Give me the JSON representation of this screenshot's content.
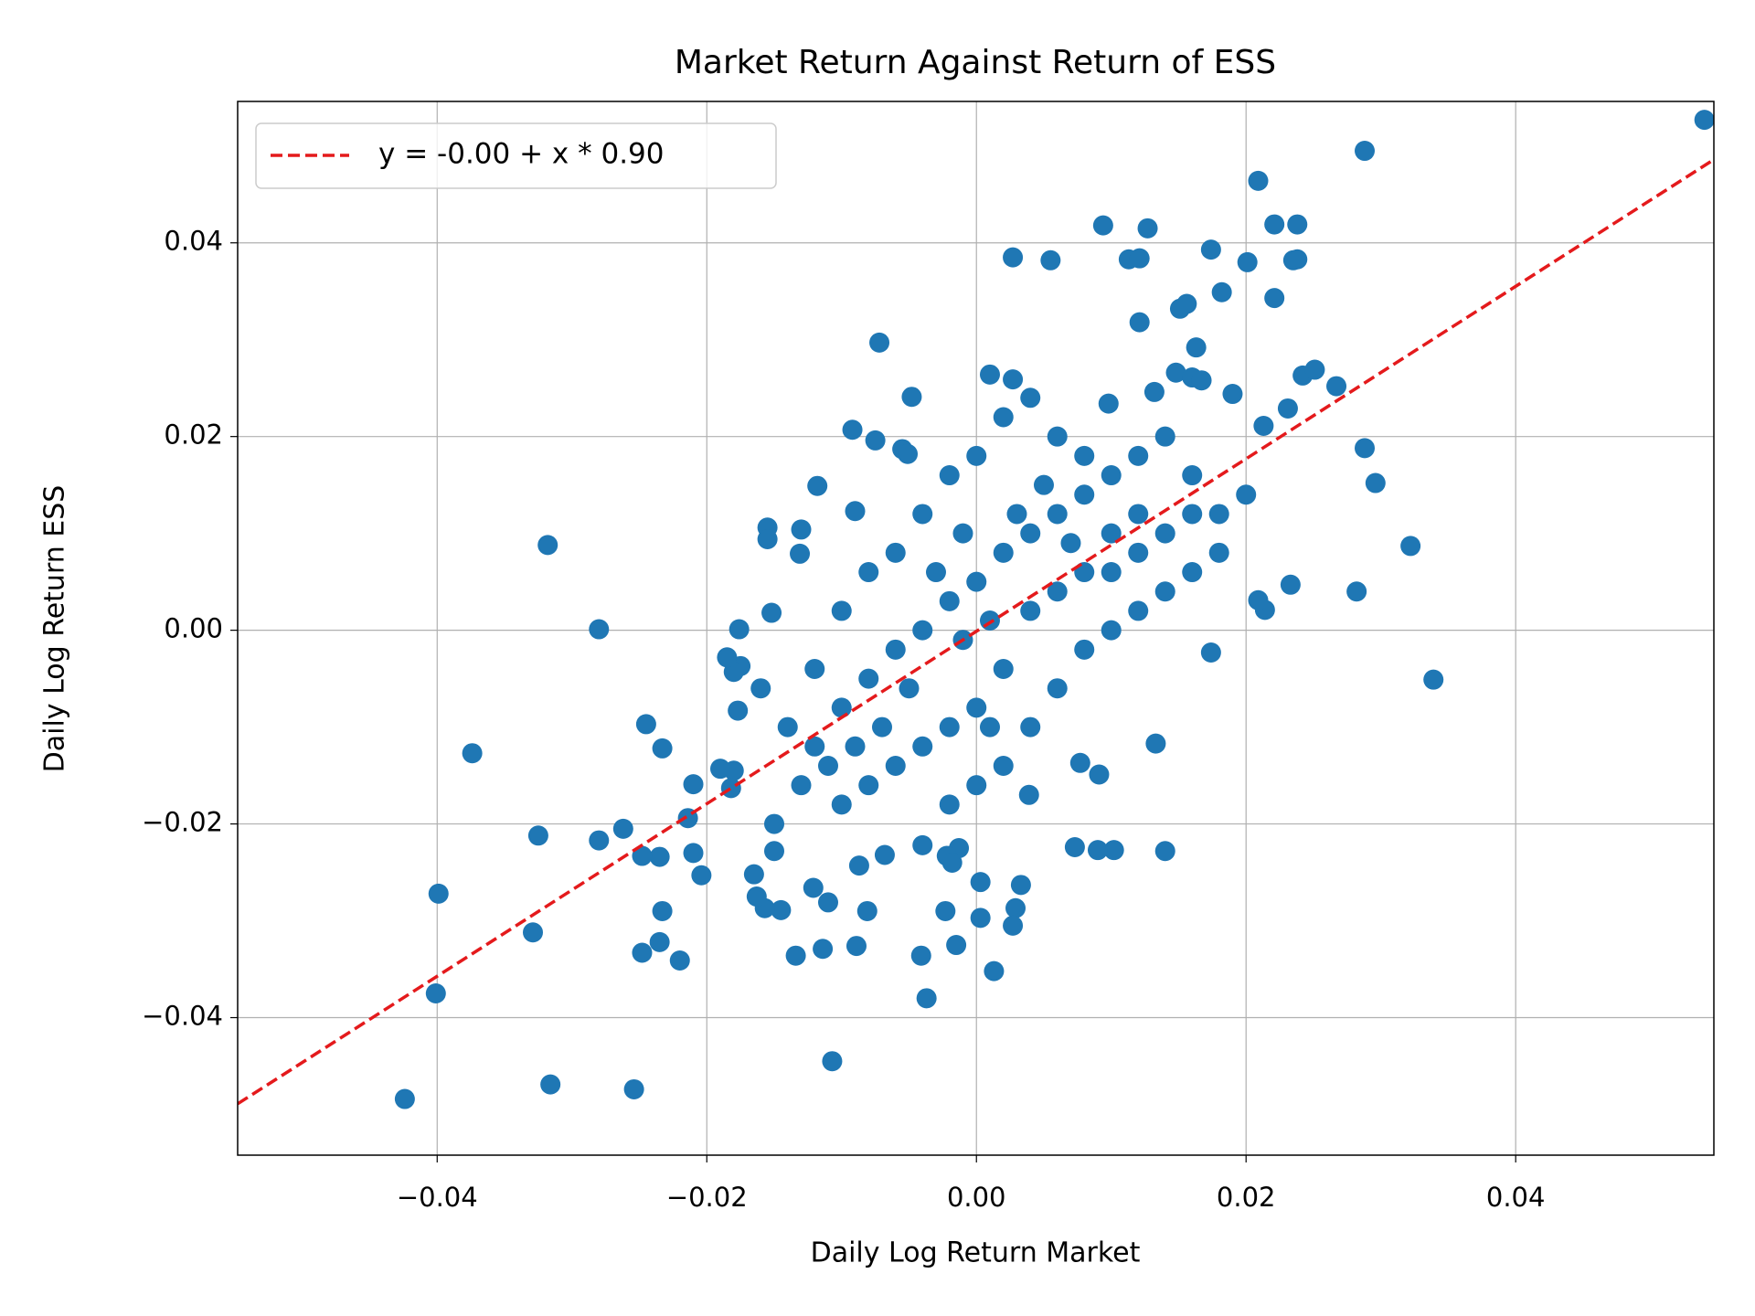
{
  "chart_data": {
    "type": "scatter",
    "title": "Market Return Against Return of ESS",
    "xlabel": "Daily Log Return Market",
    "ylabel": "Daily Log Return ESS",
    "xlim": [
      -0.0548,
      0.0547
    ],
    "ylim": [
      -0.0542,
      0.0546
    ],
    "xticks": [
      {
        "value": -0.04,
        "label": "−0.04"
      },
      {
        "value": -0.02,
        "label": "−0.02"
      },
      {
        "value": 0,
        "label": "0.00"
      },
      0.02,
      0.04
    ],
    "yticks": [
      {
        "value": -0.04,
        "label": "−0.04"
      },
      {
        "value": -0.02,
        "label": "−0.02"
      },
      {
        "value": 0,
        "label": "0.00"
      },
      0.02,
      0.04
    ],
    "grid": true,
    "legend": "upper left",
    "series": [
      {
        "name": "y = -0.00 + x * 0.90",
        "type": "line",
        "color": "#e41a1c",
        "dashed": true,
        "x": [
          -0.0548,
          0.0547
        ],
        "values": [
          -0.0489,
          0.0486
        ]
      },
      {
        "type": "scatter",
        "color": "#1f77b4",
        "x": [
          0.054,
          0.0288,
          0.0209,
          0.0094,
          0.0127,
          0.0221,
          0.0238,
          0.0027,
          0.0055,
          0.0113,
          0.0121,
          0.0174,
          0.0201,
          0.0235,
          0.0238,
          0.0182,
          0.0221,
          0.0151,
          0.0156,
          0.0121,
          -0.0072,
          0.0163,
          0.001,
          0.0027,
          0.0148,
          0.016,
          0.0167,
          0.0242,
          0.0251,
          0.0267,
          -0.0048,
          0.0098,
          0.0132,
          0.019,
          0.0231,
          -0.0092,
          0.0213,
          0.0288,
          0.0296,
          0.0322,
          0.0282,
          0.0339,
          0.0233,
          0.0214,
          0.0209,
          0.0174,
          0.0133,
          0.014,
          0.0102,
          0.009,
          0.0073,
          0.0091,
          0.0077,
          0.0039,
          0.0033,
          0.0029,
          0.0027,
          0.0013,
          0.0003,
          0.0003,
          -0.0013,
          -0.0022,
          -0.0018,
          -0.0023,
          -0.0015,
          -0.0041,
          -0.0037,
          -0.004,
          -0.0068,
          -0.0081,
          -0.0087,
          -0.0089,
          -0.011,
          -0.0114,
          -0.0107,
          -0.0121,
          -0.0134,
          -0.0145,
          -0.015,
          -0.0157,
          -0.0163,
          -0.0165,
          -0.018,
          -0.0182,
          -0.0177,
          -0.0175,
          -0.018,
          -0.0185,
          -0.0176,
          -0.0152,
          -0.0155,
          -0.0155,
          -0.013,
          -0.0131,
          -0.0118,
          -0.009,
          -0.0075,
          -0.0055,
          -0.0051,
          -0.021,
          -0.019,
          -0.0214,
          -0.021,
          -0.0204,
          -0.0233,
          -0.0245,
          -0.0235,
          -0.0248,
          -0.0262,
          -0.028,
          -0.0233,
          -0.0235,
          -0.0248,
          -0.022,
          -0.0254,
          -0.0316,
          -0.0424,
          -0.0401,
          -0.0399,
          -0.0329,
          -0.0325,
          -0.0374,
          -0.0318,
          -0.028,
          -0.01,
          -0.008,
          -0.006,
          -0.004,
          -0.002,
          0,
          0.002,
          0.004,
          0.006,
          0.008,
          0.01,
          0.012,
          0.004,
          0.002,
          0,
          -0.002,
          -0.004,
          -0.006,
          -0.008,
          -0.01,
          -0.012,
          -0.014,
          -0.012,
          -0.01,
          -0.008,
          -0.006,
          -0.004,
          -0.002,
          0,
          0.002,
          0.004,
          0.006,
          0.008,
          0.01,
          0.012,
          0.014,
          0.016,
          0.018,
          0.02,
          0.016,
          0.014,
          0.012,
          0.01,
          0.008,
          0.006,
          0.004,
          0.002,
          0,
          -0.002,
          0.006,
          0.008,
          0.001,
          -0.001,
          0.003,
          0.005,
          -0.003,
          -0.005,
          -0.007,
          -0.009,
          -0.011,
          -0.013,
          -0.015,
          -0.016,
          0.01,
          0.012,
          0.014,
          0.016,
          0.018,
          0.007,
          -0.001,
          0.001
        ],
        "values": [
          0.0527,
          0.0495,
          0.0464,
          0.0418,
          0.0415,
          0.0419,
          0.0419,
          0.0385,
          0.0382,
          0.0383,
          0.0384,
          0.0393,
          0.038,
          0.0382,
          0.0383,
          0.0349,
          0.0343,
          0.0332,
          0.0337,
          0.0318,
          0.0297,
          0.0292,
          0.0264,
          0.0259,
          0.0266,
          0.0261,
          0.0258,
          0.0263,
          0.0269,
          0.0252,
          0.0241,
          0.0234,
          0.0246,
          0.0244,
          0.0229,
          0.0207,
          0.0211,
          0.0188,
          0.0152,
          0.0087,
          0.004,
          -0.0051,
          0.0047,
          0.0021,
          0.0031,
          -0.0023,
          -0.0117,
          -0.0228,
          -0.0227,
          -0.0227,
          -0.0224,
          -0.0149,
          -0.0137,
          -0.017,
          -0.0263,
          -0.0287,
          -0.0305,
          -0.0352,
          -0.026,
          -0.0297,
          -0.0225,
          -0.0233,
          -0.024,
          -0.029,
          -0.0325,
          -0.0336,
          -0.038,
          -0.0222,
          -0.0232,
          -0.029,
          -0.0243,
          -0.0326,
          -0.0281,
          -0.0329,
          -0.0445,
          -0.0266,
          -0.0336,
          -0.0289,
          -0.0228,
          -0.0287,
          -0.0275,
          -0.0252,
          -0.0145,
          -0.0163,
          -0.0083,
          -0.0037,
          -0.0043,
          -0.0028,
          0.0001,
          0.0018,
          0.0106,
          0.0094,
          0.0104,
          0.0079,
          0.0149,
          0.0123,
          0.0196,
          0.0187,
          0.0182,
          -0.0159,
          -0.0143,
          -0.0194,
          -0.023,
          -0.0253,
          -0.0122,
          -0.0097,
          -0.0234,
          -0.0233,
          -0.0205,
          -0.0217,
          -0.029,
          -0.0322,
          -0.0333,
          -0.0341,
          -0.0474,
          -0.0469,
          -0.0484,
          -0.0375,
          -0.0272,
          -0.0312,
          -0.0212,
          -0.0127,
          0.0088,
          0.0001,
          -0.008,
          -0.005,
          -0.002,
          0,
          0.003,
          0.005,
          0.008,
          0.01,
          0.012,
          0.014,
          0.01,
          0.008,
          0.002,
          -0.004,
          -0.008,
          -0.01,
          -0.012,
          -0.014,
          -0.016,
          -0.018,
          -0.012,
          -0.01,
          -0.004,
          0.002,
          0.006,
          0.008,
          0.012,
          0.016,
          0.018,
          0.022,
          0.024,
          0.02,
          0.018,
          0.016,
          0.018,
          0.02,
          0.016,
          0.012,
          0.014,
          0.006,
          0.004,
          0.002,
          0,
          -0.002,
          -0.006,
          -0.01,
          -0.014,
          -0.016,
          -0.018,
          0.004,
          0.006,
          0.001,
          -0.001,
          0.012,
          0.015,
          0.006,
          -0.006,
          -0.01,
          -0.012,
          -0.014,
          -0.016,
          -0.02,
          -0.006,
          0.006,
          0.012,
          0.01,
          0.012,
          0.008,
          0.009,
          0.01,
          -0.01
        ]
      }
    ]
  }
}
